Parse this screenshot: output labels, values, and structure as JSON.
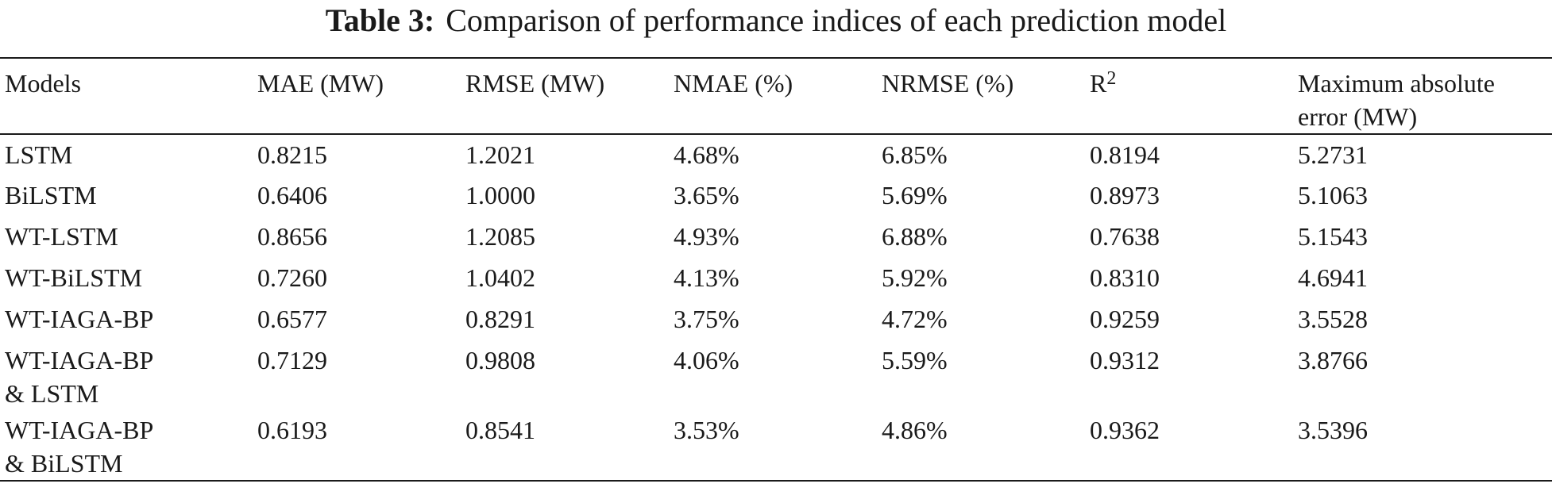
{
  "caption": {
    "label": "Table 3:",
    "text": "Comparison of performance indices of each prediction model"
  },
  "table": {
    "headers": {
      "models": "Models",
      "mae": "MAE (MW)",
      "rmse": "RMSE (MW)",
      "nmae": "NMAE (%)",
      "nrmse": "NRMSE (%)",
      "r2_base": "R",
      "r2_sup": "2",
      "max_abs_line1": "Maximum absolute",
      "max_abs_line2": "error (MW)"
    },
    "rows": [
      {
        "model_line1": "LSTM",
        "model_line2": "",
        "mae": "0.8215",
        "rmse": "1.2021",
        "nmae": "4.68%",
        "nrmse": "6.85%",
        "r2": "0.8194",
        "max_abs": "5.2731"
      },
      {
        "model_line1": "BiLSTM",
        "model_line2": "",
        "mae": "0.6406",
        "rmse": "1.0000",
        "nmae": "3.65%",
        "nrmse": "5.69%",
        "r2": "0.8973",
        "max_abs": "5.1063"
      },
      {
        "model_line1": "WT-LSTM",
        "model_line2": "",
        "mae": "0.8656",
        "rmse": "1.2085",
        "nmae": "4.93%",
        "nrmse": "6.88%",
        "r2": "0.7638",
        "max_abs": "5.1543"
      },
      {
        "model_line1": "WT-BiLSTM",
        "model_line2": "",
        "mae": "0.7260",
        "rmse": "1.0402",
        "nmae": "4.13%",
        "nrmse": "5.92%",
        "r2": "0.8310",
        "max_abs": "4.6941"
      },
      {
        "model_line1": "WT-IAGA-BP",
        "model_line2": "",
        "mae": "0.6577",
        "rmse": "0.8291",
        "nmae": "3.75%",
        "nrmse": "4.72%",
        "r2": "0.9259",
        "max_abs": "3.5528"
      },
      {
        "model_line1": "WT-IAGA-BP",
        "model_line2": "& LSTM",
        "mae": "0.7129",
        "rmse": "0.9808",
        "nmae": "4.06%",
        "nrmse": "5.59%",
        "r2": "0.9312",
        "max_abs": "3.8766"
      },
      {
        "model_line1": "WT-IAGA-BP",
        "model_line2": "& BiLSTM",
        "mae": "0.6193",
        "rmse": "0.8541",
        "nmae": "3.53%",
        "nrmse": "4.86%",
        "r2": "0.9362",
        "max_abs": "3.5396"
      }
    ]
  }
}
